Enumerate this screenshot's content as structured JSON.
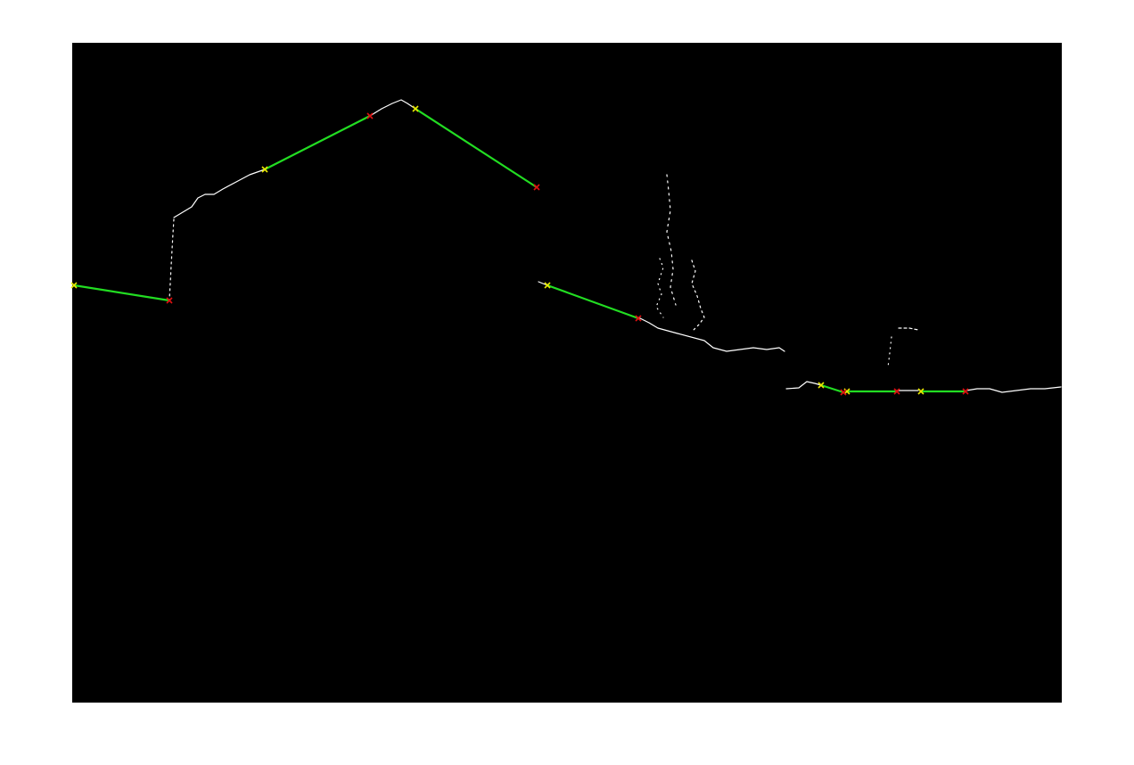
{
  "figure": {
    "background": "#ffffff",
    "image_background": "#000000"
  },
  "colors": {
    "edge": "#ffffff",
    "segment": "#22dd22",
    "start_marker": "#e8e800",
    "end_marker": "#e01010"
  },
  "legend": {
    "start_marker_shape": "yellow x",
    "end_marker_shape": "red x"
  }
}
